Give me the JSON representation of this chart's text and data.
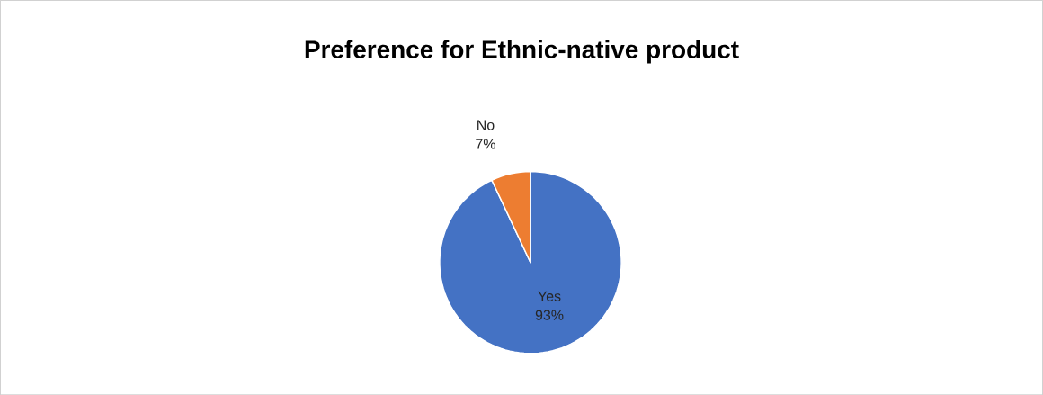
{
  "chart_data": {
    "type": "pie",
    "title": "Preference for Ethnic-native product",
    "categories": [
      "Yes",
      "No"
    ],
    "values": [
      93,
      7
    ],
    "value_labels": [
      "93%",
      "7%"
    ],
    "colors": [
      "#4472c4",
      "#ed7d31"
    ]
  }
}
